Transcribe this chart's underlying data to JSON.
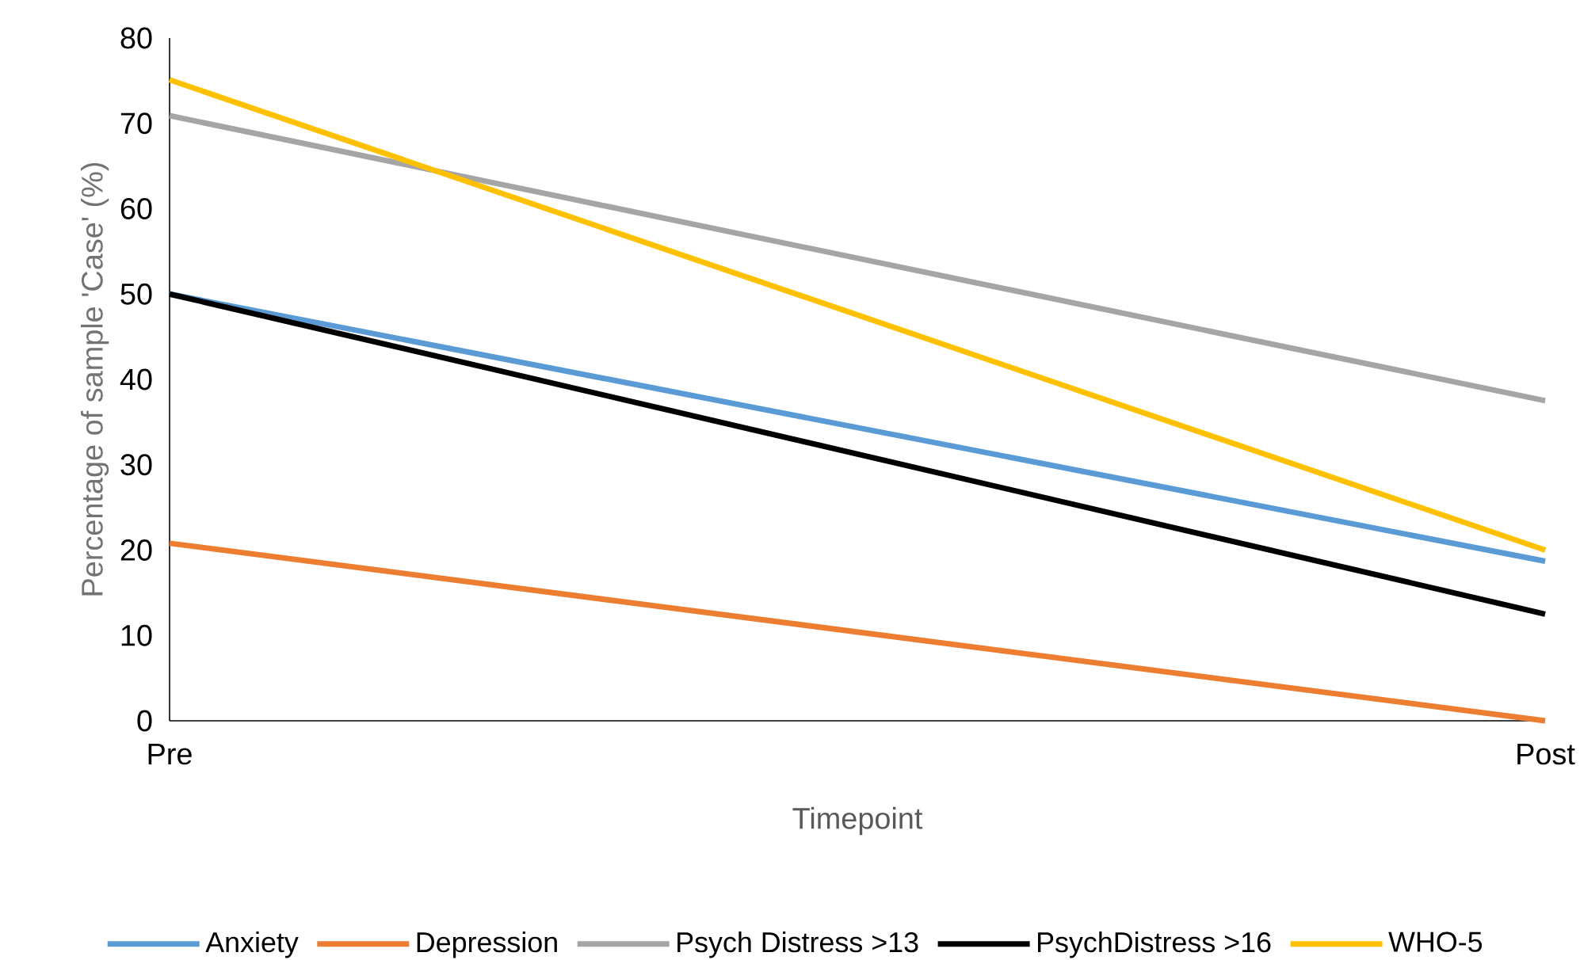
{
  "chart_data": {
    "type": "line",
    "xlabel": "Timepoint",
    "ylabel": "Percentage of sample 'Case' (%)",
    "categories": [
      "Pre",
      "Post"
    ],
    "ylim": [
      0,
      80
    ],
    "yticks": [
      0,
      10,
      20,
      30,
      40,
      50,
      60,
      70,
      80
    ],
    "legend": "bottom",
    "marker": "none",
    "line_style": "solid",
    "series": [
      {
        "name": "Anxiety",
        "color": "#5b9bd5",
        "values": [
          50,
          18.7
        ]
      },
      {
        "name": "Depression",
        "color": "#ed7d31",
        "values": [
          20.8,
          0
        ]
      },
      {
        "name": "Psych Distress >13",
        "color": "#a5a5a5",
        "values": [
          70.9,
          37.5
        ]
      },
      {
        "name": "PsychDistress >16",
        "color": "#000000",
        "values": [
          50,
          12.5
        ]
      },
      {
        "name": "WHO-5",
        "color": "#ffc000",
        "values": [
          75.1,
          20
        ]
      }
    ]
  }
}
